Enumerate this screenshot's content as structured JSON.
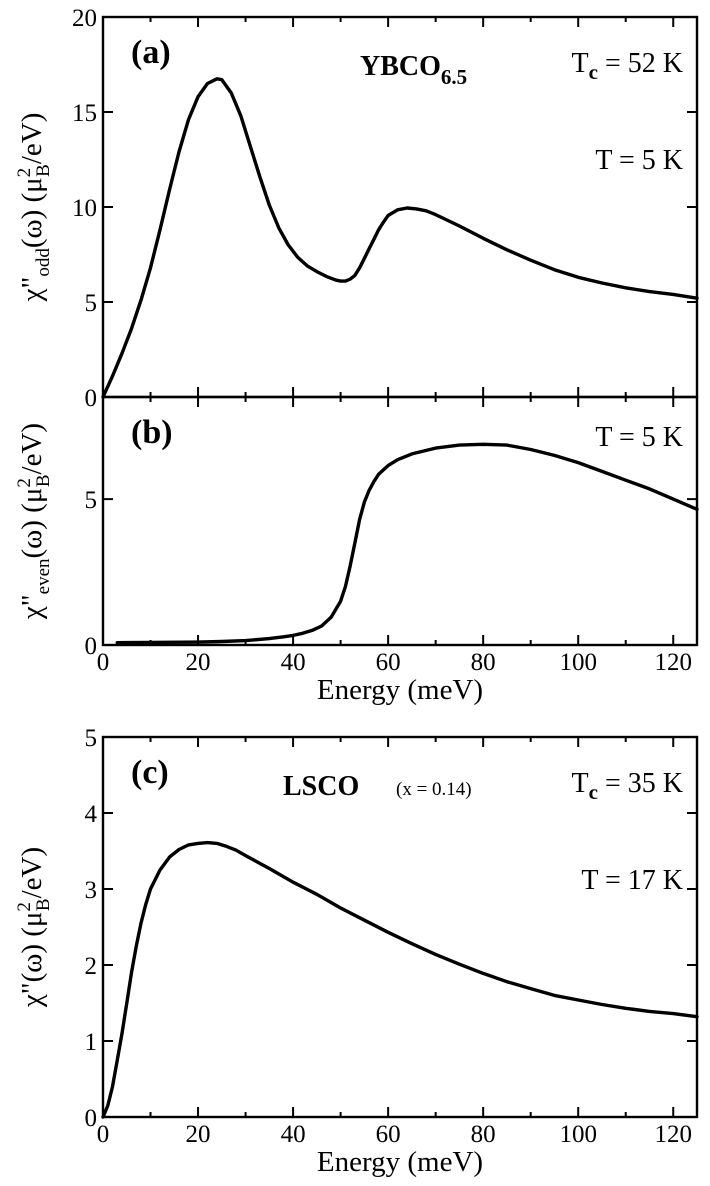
{
  "chart_data": [
    {
      "id": "a",
      "type": "line",
      "panel_label": "(a)",
      "compound_main": "YBCO",
      "compound_sub": "6.5",
      "tc_main": "T",
      "tc_sub": "c",
      "tc_value": " = 52 K",
      "temperature": "T = 5 K",
      "ylabel_main": "χ\"",
      "ylabel_sub": "odd",
      "ylabel_tail": "(ω) (μ",
      "ylabel_sup": "2",
      "ylabel_sub2": "B",
      "ylabel_end": "/eV)",
      "xlabel": "",
      "xlim": [
        0,
        125
      ],
      "ylim": [
        0,
        20
      ],
      "xticks": [
        0,
        20,
        40,
        60,
        80,
        100,
        120
      ],
      "xtick_labels_shown": false,
      "yticks": [
        0,
        5,
        10,
        15,
        20
      ],
      "ytick_labels": [
        "0",
        "5",
        "10",
        "15",
        "20"
      ],
      "series": [
        {
          "x": [
            0,
            2,
            4,
            6,
            8,
            10,
            12,
            14,
            16,
            18,
            20,
            22,
            24,
            25,
            27,
            29,
            31,
            33,
            35,
            37,
            39,
            41,
            43,
            45,
            47,
            49,
            50,
            51,
            52,
            53,
            54,
            55,
            56,
            57,
            58,
            59,
            60,
            62,
            64,
            66,
            68,
            70,
            75,
            80,
            85,
            90,
            95,
            100,
            105,
            110,
            115,
            120,
            125
          ],
          "y": [
            0,
            1.1,
            2.3,
            3.6,
            5.1,
            6.8,
            8.8,
            10.9,
            12.9,
            14.6,
            15.8,
            16.5,
            16.75,
            16.7,
            16.0,
            14.8,
            13.2,
            11.6,
            10.1,
            8.9,
            8.0,
            7.35,
            6.9,
            6.6,
            6.35,
            6.15,
            6.1,
            6.1,
            6.2,
            6.4,
            6.8,
            7.3,
            7.8,
            8.3,
            8.8,
            9.2,
            9.55,
            9.85,
            9.95,
            9.9,
            9.8,
            9.6,
            9.0,
            8.35,
            7.75,
            7.2,
            6.7,
            6.3,
            6.0,
            5.75,
            5.55,
            5.4,
            5.2
          ]
        }
      ]
    },
    {
      "id": "b",
      "type": "line",
      "panel_label": "(b)",
      "temperature": "T = 5 K",
      "ylabel_main": "χ\"",
      "ylabel_sub": "even",
      "ylabel_tail": "(ω) (μ",
      "ylabel_sup": "2",
      "ylabel_sub2": "B",
      "ylabel_end": "/eV)",
      "xlabel": "Energy (meV)",
      "xlim": [
        0,
        125
      ],
      "ylim": [
        0,
        8.5
      ],
      "xticks": [
        0,
        20,
        40,
        60,
        80,
        100,
        120
      ],
      "xtick_labels": [
        "0",
        "20",
        "40",
        "60",
        "80",
        "100",
        "120"
      ],
      "yticks": [
        0,
        5
      ],
      "ytick_labels": [
        "0",
        "5"
      ],
      "series": [
        {
          "x": [
            3,
            10,
            20,
            25,
            30,
            35,
            38,
            40,
            42,
            44,
            46,
            48,
            50,
            51,
            52,
            53,
            54,
            55,
            56,
            57,
            58,
            60,
            62,
            65,
            70,
            75,
            80,
            85,
            90,
            95,
            100,
            105,
            110,
            115,
            120,
            125
          ],
          "y": [
            0.08,
            0.09,
            0.1,
            0.12,
            0.15,
            0.22,
            0.28,
            0.33,
            0.4,
            0.5,
            0.65,
            0.95,
            1.5,
            2.0,
            2.7,
            3.5,
            4.3,
            4.9,
            5.3,
            5.6,
            5.85,
            6.15,
            6.35,
            6.55,
            6.75,
            6.85,
            6.88,
            6.85,
            6.7,
            6.5,
            6.25,
            5.95,
            5.65,
            5.35,
            5.0,
            4.65
          ]
        }
      ]
    },
    {
      "id": "c",
      "type": "line",
      "panel_label": "(c)",
      "compound_main": "LSCO",
      "compound_note": "(x = 0.14)",
      "tc_main": "T",
      "tc_sub": "c",
      "tc_value": " = 35 K",
      "temperature": "T = 17 K",
      "ylabel_main": "χ\"",
      "ylabel_sub": "",
      "ylabel_tail": "(ω) (μ",
      "ylabel_sup": "2",
      "ylabel_sub2": "B",
      "ylabel_end": "/eV)",
      "xlabel": "Energy (meV)",
      "xlim": [
        0,
        125
      ],
      "ylim": [
        0,
        5
      ],
      "xticks": [
        0,
        20,
        40,
        60,
        80,
        100,
        120
      ],
      "xtick_labels": [
        "0",
        "20",
        "40",
        "60",
        "80",
        "100",
        "120"
      ],
      "yticks": [
        0,
        1,
        2,
        3,
        4,
        5
      ],
      "ytick_labels": [
        "0",
        "1",
        "2",
        "3",
        "4",
        "5"
      ],
      "series": [
        {
          "x": [
            0,
            1,
            2,
            3,
            4,
            5,
            6,
            7,
            8,
            9,
            10,
            12,
            14,
            16,
            18,
            20,
            22,
            24,
            26,
            28,
            30,
            35,
            40,
            45,
            50,
            55,
            60,
            65,
            70,
            75,
            80,
            85,
            90,
            95,
            100,
            105,
            110,
            115,
            120,
            125
          ],
          "y": [
            0,
            0.15,
            0.4,
            0.75,
            1.1,
            1.5,
            1.9,
            2.25,
            2.55,
            2.8,
            3.0,
            3.25,
            3.42,
            3.52,
            3.58,
            3.6,
            3.61,
            3.6,
            3.56,
            3.51,
            3.44,
            3.27,
            3.09,
            2.93,
            2.75,
            2.59,
            2.43,
            2.28,
            2.14,
            2.01,
            1.89,
            1.78,
            1.69,
            1.6,
            1.54,
            1.48,
            1.43,
            1.39,
            1.36,
            1.32
          ]
        }
      ]
    }
  ]
}
